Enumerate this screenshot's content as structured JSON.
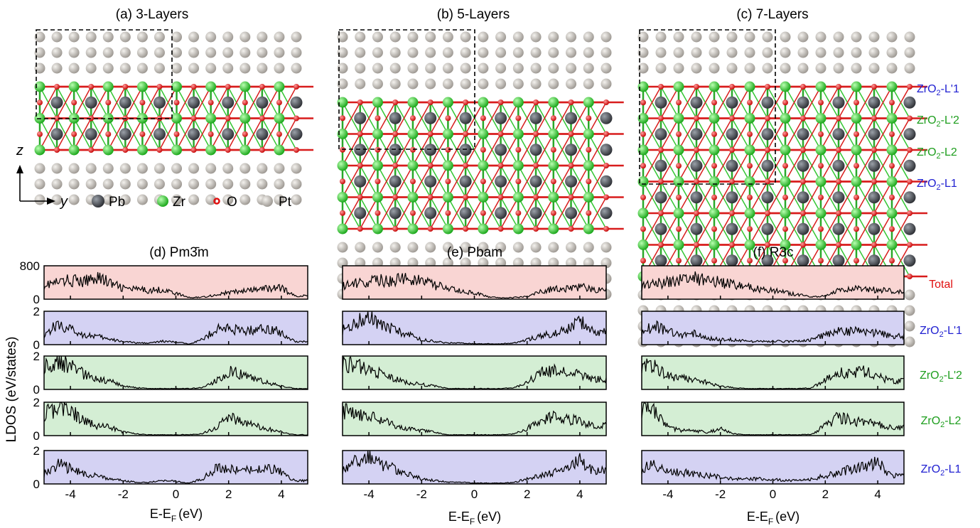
{
  "figure": {
    "structure_titles": [
      "(a)  3-Layers",
      "(b)  5-Layers",
      "(c)  7-Layers"
    ],
    "axis_labels": {
      "z": "z",
      "y": "y"
    },
    "species_legend": [
      {
        "label": "Pb",
        "color": "#4a4d54"
      },
      {
        "label": "Zr",
        "color": "#2ecc2e"
      },
      {
        "label": "O",
        "color": "#e01010"
      },
      {
        "label": "Pt",
        "color": "#b9b4ad"
      }
    ],
    "layer_labels": [
      {
        "main": "ZrO",
        "sub": "2",
        "suffix": "-L'1",
        "color": "#1f1fd1"
      },
      {
        "main": "ZrO",
        "sub": "2",
        "suffix": "-L'2",
        "color": "#1e9e1e"
      },
      {
        "main": "ZrO",
        "sub": "2",
        "suffix": "-L2",
        "color": "#1e9e1e"
      },
      {
        "main": "ZrO",
        "sub": "2",
        "suffix": "-L1",
        "color": "#1f1fd1"
      }
    ],
    "dos_row_labels": [
      {
        "main": "Total",
        "sub": "",
        "suffix": "",
        "color": "#e01010"
      },
      {
        "main": "ZrO",
        "sub": "2",
        "suffix": "-L'1",
        "color": "#1f1fd1"
      },
      {
        "main": "ZrO",
        "sub": "2",
        "suffix": "-L'2",
        "color": "#1e9e1e"
      },
      {
        "main": "ZrO",
        "sub": "2",
        "suffix": "-L2",
        "color": "#1e9e1e"
      },
      {
        "main": "ZrO",
        "sub": "2",
        "suffix": "-L1",
        "color": "#1f1fd1"
      }
    ],
    "row_fill_colors": [
      "#f9d5d3",
      "#d4d2f3",
      "#d4eed4",
      "#d4eed4",
      "#d4d2f3"
    ],
    "y_axis_label": "LDOS (eV/states)",
    "x_axis_label": {
      "main": "E-E",
      "sub": "F",
      "tail": "(eV)"
    }
  },
  "chart_data": [
    {
      "type": "line",
      "title": "(d)  Pm3̄m",
      "xlabel": "E-EF (eV)",
      "ylabel": "LDOS (eV/states)",
      "xlim": [
        -5,
        5
      ],
      "xticks": [
        -4,
        -2,
        0,
        2,
        4
      ],
      "rows": [
        {
          "name": "Total",
          "ylim": [
            0,
            800
          ],
          "yticks": [
            0,
            800
          ],
          "x": [
            -5,
            -4.5,
            -4,
            -3.5,
            -3,
            -2.5,
            -2,
            -1.5,
            -1,
            -0.5,
            0,
            0.5,
            1,
            1.5,
            2,
            2.5,
            3,
            3.5,
            4,
            4.5
          ],
          "values": [
            350,
            390,
            460,
            400,
            560,
            380,
            260,
            230,
            210,
            230,
            140,
            40,
            50,
            100,
            160,
            190,
            220,
            260,
            270,
            80
          ]
        },
        {
          "name": "ZrO2-L'1",
          "ylim": [
            0,
            2
          ],
          "yticks": [
            0,
            2
          ],
          "x": [
            -5,
            -4.5,
            -4,
            -3.5,
            -3,
            -2.5,
            -2,
            -1.5,
            -1,
            -0.5,
            0,
            0.5,
            1,
            1.5,
            2,
            2.5,
            3,
            3.5,
            4,
            4.5
          ],
          "values": [
            0.6,
            1.2,
            0.9,
            0.6,
            0.5,
            0.3,
            0.2,
            0.1,
            0.1,
            0.2,
            0.15,
            0.05,
            0.3,
            0.9,
            1.0,
            0.8,
            0.9,
            1.0,
            0.7,
            0.2
          ]
        },
        {
          "name": "ZrO2-L'2",
          "ylim": [
            0,
            2
          ],
          "yticks": [
            0,
            2
          ],
          "x": [
            -5,
            -4.5,
            -4,
            -3.5,
            -3,
            -2.5,
            -2,
            -1.5,
            -1,
            -0.5,
            0,
            0.5,
            1,
            1.5,
            2,
            2.5,
            3,
            3.5,
            4,
            4.5
          ],
          "values": [
            1.4,
            1.6,
            1.5,
            0.9,
            0.6,
            0.5,
            0.2,
            0.1,
            0.05,
            0.05,
            0.05,
            0.05,
            0.1,
            0.5,
            1.1,
            0.9,
            0.6,
            0.4,
            0.2,
            0.05
          ]
        },
        {
          "name": "ZrO2-L2",
          "ylim": [
            0,
            2
          ],
          "yticks": [
            0,
            2
          ],
          "x": [
            -5,
            -4.5,
            -4,
            -3.5,
            -3,
            -2.5,
            -2,
            -1.5,
            -1,
            -0.5,
            0,
            0.5,
            1,
            1.5,
            2,
            2.5,
            3,
            3.5,
            4,
            4.5
          ],
          "values": [
            1.3,
            1.6,
            1.5,
            0.9,
            0.6,
            0.5,
            0.2,
            0.1,
            0.05,
            0.05,
            0.05,
            0.05,
            0.1,
            0.5,
            1.1,
            0.9,
            0.6,
            0.4,
            0.2,
            0.05
          ]
        },
        {
          "name": "ZrO2-L1",
          "ylim": [
            0,
            2
          ],
          "yticks": [
            0,
            2
          ],
          "x": [
            -5,
            -4.5,
            -4,
            -3.5,
            -3,
            -2.5,
            -2,
            -1.5,
            -1,
            -0.5,
            0,
            0.5,
            1,
            1.5,
            2,
            2.5,
            3,
            3.5,
            4,
            4.5
          ],
          "values": [
            0.6,
            1.2,
            0.9,
            0.6,
            0.5,
            0.3,
            0.2,
            0.1,
            0.1,
            0.2,
            0.15,
            0.05,
            0.3,
            0.9,
            1.0,
            0.8,
            0.9,
            1.0,
            0.7,
            0.2
          ]
        }
      ]
    },
    {
      "type": "line",
      "title": "(e)  Pbam",
      "xlabel": "E-EF (eV)",
      "ylabel": "LDOS (eV/states)",
      "xlim": [
        -5,
        5
      ],
      "xticks": [
        -4,
        -2,
        0,
        2,
        4
      ],
      "rows": [
        {
          "name": "Total",
          "ylim": [
            0,
            800
          ],
          "yticks": [
            0,
            800
          ],
          "x": [
            -5,
            -4.5,
            -4,
            -3.5,
            -3,
            -2.5,
            -2,
            -1.5,
            -1,
            -0.5,
            0,
            0.5,
            1,
            1.5,
            2,
            2.5,
            3,
            3.5,
            4,
            4.5
          ],
          "values": [
            300,
            380,
            420,
            450,
            440,
            520,
            420,
            330,
            260,
            180,
            150,
            60,
            30,
            40,
            60,
            200,
            240,
            260,
            300,
            220
          ]
        },
        {
          "name": "ZrO2-L'1",
          "ylim": [
            0,
            2
          ],
          "yticks": [
            0,
            2
          ],
          "x": [
            -5,
            -4.5,
            -4,
            -3.5,
            -3,
            -2.5,
            -2,
            -1.5,
            -1,
            -0.5,
            0,
            0.5,
            1,
            1.5,
            2,
            2.5,
            3,
            3.5,
            4,
            4.5
          ],
          "values": [
            0.9,
            1.3,
            1.8,
            1.1,
            0.9,
            0.6,
            0.3,
            0.2,
            0.1,
            0.1,
            0.05,
            0.05,
            0.05,
            0.1,
            0.3,
            0.5,
            0.7,
            0.9,
            1.4,
            0.8
          ]
        },
        {
          "name": "ZrO2-L'2",
          "ylim": [
            0,
            2
          ],
          "yticks": [
            0,
            2
          ],
          "x": [
            -5,
            -4.5,
            -4,
            -3.5,
            -3,
            -2.5,
            -2,
            -1.5,
            -1,
            -0.5,
            0,
            0.5,
            1,
            1.5,
            2,
            2.5,
            3,
            3.5,
            4,
            4.5
          ],
          "values": [
            1.6,
            1.4,
            1.2,
            0.9,
            0.6,
            0.4,
            0.3,
            0.2,
            0.05,
            0.05,
            0.05,
            0.05,
            0.05,
            0.1,
            0.4,
            1.0,
            1.1,
            1.0,
            0.9,
            0.6
          ]
        },
        {
          "name": "ZrO2-L2",
          "ylim": [
            0,
            2
          ],
          "yticks": [
            0,
            2
          ],
          "x": [
            -5,
            -4.5,
            -4,
            -3.5,
            -3,
            -2.5,
            -2,
            -1.5,
            -1,
            -0.5,
            0,
            0.5,
            1,
            1.5,
            2,
            2.5,
            3,
            3.5,
            4,
            4.5
          ],
          "values": [
            1.5,
            1.4,
            1.2,
            0.9,
            0.6,
            0.4,
            0.3,
            0.2,
            0.05,
            0.05,
            0.05,
            0.05,
            0.05,
            0.1,
            0.4,
            1.0,
            1.1,
            1.0,
            0.9,
            0.6
          ]
        },
        {
          "name": "ZrO2-L1",
          "ylim": [
            0,
            2
          ],
          "yticks": [
            0,
            2
          ],
          "x": [
            -5,
            -4.5,
            -4,
            -3.5,
            -3,
            -2.5,
            -2,
            -1.5,
            -1,
            -0.5,
            0,
            0.5,
            1,
            1.5,
            2,
            2.5,
            3,
            3.5,
            4,
            4.5
          ],
          "values": [
            0.9,
            1.3,
            1.8,
            1.1,
            0.9,
            0.6,
            0.3,
            0.2,
            0.1,
            0.1,
            0.05,
            0.05,
            0.05,
            0.1,
            0.3,
            0.5,
            0.7,
            0.9,
            1.4,
            0.8
          ]
        }
      ]
    },
    {
      "type": "line",
      "title": "(f)  R3c",
      "xlabel": "E-EF (eV)",
      "ylabel": "LDOS (eV/states)",
      "xlim": [
        -5,
        5
      ],
      "xticks": [
        -4,
        -2,
        0,
        2,
        4
      ],
      "rows": [
        {
          "name": "Total",
          "ylim": [
            0,
            800
          ],
          "yticks": [
            0,
            800
          ],
          "x": [
            -5,
            -4.5,
            -4,
            -3.5,
            -3,
            -2.5,
            -2,
            -1.5,
            -1,
            -0.5,
            0,
            0.5,
            1,
            1.5,
            2,
            2.5,
            3,
            3.5,
            4,
            4.5
          ],
          "values": [
            300,
            360,
            420,
            480,
            520,
            460,
            400,
            350,
            300,
            240,
            200,
            160,
            100,
            60,
            80,
            200,
            260,
            240,
            220,
            200
          ]
        },
        {
          "name": "ZrO2-L'1",
          "ylim": [
            0,
            2
          ],
          "yticks": [
            0,
            2
          ],
          "x": [
            -5,
            -4.5,
            -4,
            -3.5,
            -3,
            -2.5,
            -2,
            -1.5,
            -1,
            -0.5,
            0,
            0.5,
            1,
            1.5,
            2,
            2.5,
            3,
            3.5,
            4,
            4.5
          ],
          "values": [
            0.8,
            1.1,
            0.8,
            0.5,
            0.7,
            0.4,
            0.3,
            0.3,
            0.2,
            0.2,
            0.2,
            0.2,
            0.2,
            0.3,
            0.6,
            0.8,
            0.8,
            0.8,
            0.7,
            0.5
          ]
        },
        {
          "name": "ZrO2-L'2",
          "ylim": [
            0,
            2
          ],
          "yticks": [
            0,
            2
          ],
          "x": [
            -5,
            -4.5,
            -4,
            -3.5,
            -3,
            -2.5,
            -2,
            -1.5,
            -1,
            -0.5,
            0,
            0.5,
            1,
            1.5,
            2,
            2.5,
            3,
            3.5,
            4,
            4.5
          ],
          "values": [
            1.5,
            1.4,
            0.8,
            0.7,
            0.6,
            0.4,
            0.2,
            0.1,
            0.05,
            0.05,
            0.05,
            0.05,
            0.05,
            0.1,
            0.6,
            1.0,
            1.0,
            1.1,
            0.8,
            0.5
          ]
        },
        {
          "name": "ZrO2-L2",
          "ylim": [
            0,
            2
          ],
          "yticks": [
            0,
            2
          ],
          "x": [
            -5,
            -4.5,
            -4,
            -3.5,
            -3,
            -2.5,
            -2,
            -1.5,
            -1,
            -0.5,
            0,
            0.5,
            1,
            1.5,
            2,
            2.5,
            3,
            3.5,
            4,
            4.5
          ],
          "values": [
            1.6,
            1.4,
            0.5,
            0.3,
            0.3,
            0.2,
            0.4,
            0.1,
            0.05,
            0.05,
            0.05,
            0.05,
            0.05,
            0.1,
            0.6,
            1.1,
            0.9,
            0.8,
            0.7,
            0.5
          ]
        },
        {
          "name": "ZrO2-L1",
          "ylim": [
            0,
            2
          ],
          "yticks": [
            0,
            2
          ],
          "x": [
            -5,
            -4.5,
            -4,
            -3.5,
            -3,
            -2.5,
            -2,
            -1.5,
            -1,
            -0.5,
            0,
            0.5,
            1,
            1.5,
            2,
            2.5,
            3,
            3.5,
            4,
            4.5
          ],
          "values": [
            0.9,
            1.2,
            0.8,
            0.7,
            0.6,
            0.5,
            0.4,
            0.3,
            0.3,
            0.3,
            0.3,
            0.2,
            0.2,
            0.3,
            0.5,
            0.7,
            0.9,
            1.0,
            1.3,
            0.5
          ]
        }
      ]
    }
  ]
}
